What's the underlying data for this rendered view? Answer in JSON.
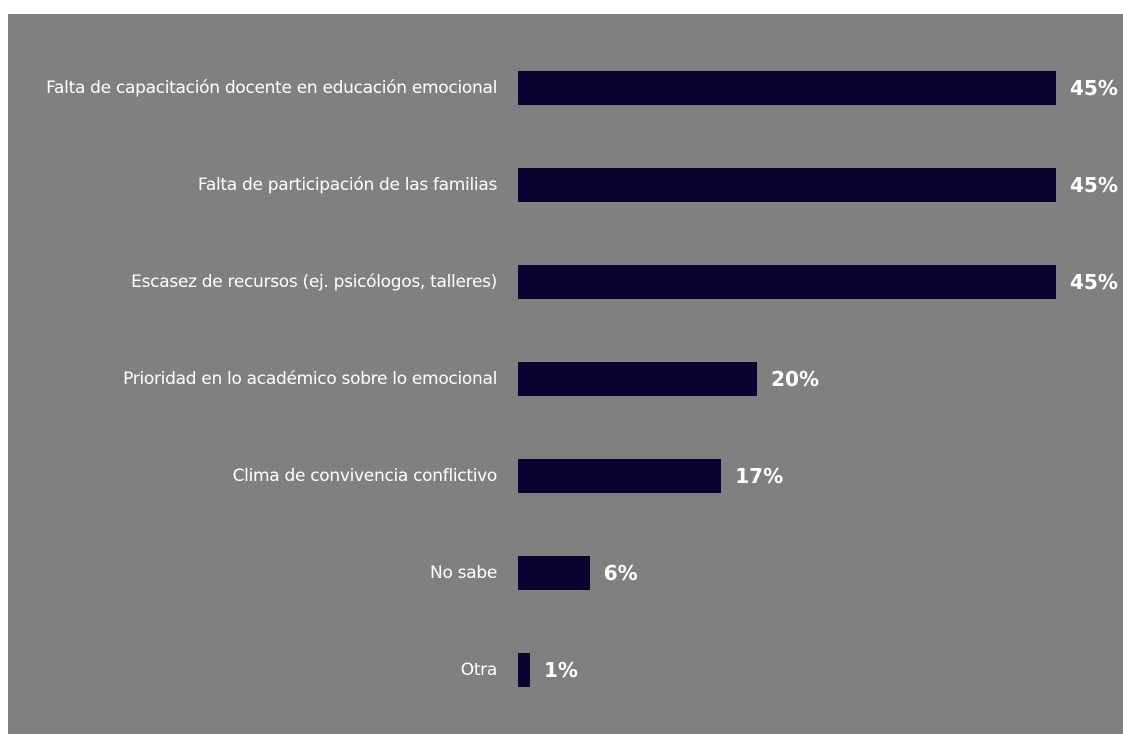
{
  "chart_data": {
    "type": "bar",
    "orientation": "horizontal",
    "color": "#0a0330",
    "categories": [
      "Falta de capacitación docente en educación emocional",
      "Falta de participación de las familias",
      "Escasez de recursos (ej. psicólogos, talleres)",
      "Prioridad en lo académico sobre lo emocional",
      "Clima de convivencia conflictivo",
      "No sabe",
      "Otra"
    ],
    "values": [
      45,
      45,
      45,
      20,
      17,
      6,
      1
    ],
    "value_labels": [
      "45%",
      "45%",
      "45%",
      "20%",
      "17%",
      "6%",
      "1%"
    ]
  }
}
